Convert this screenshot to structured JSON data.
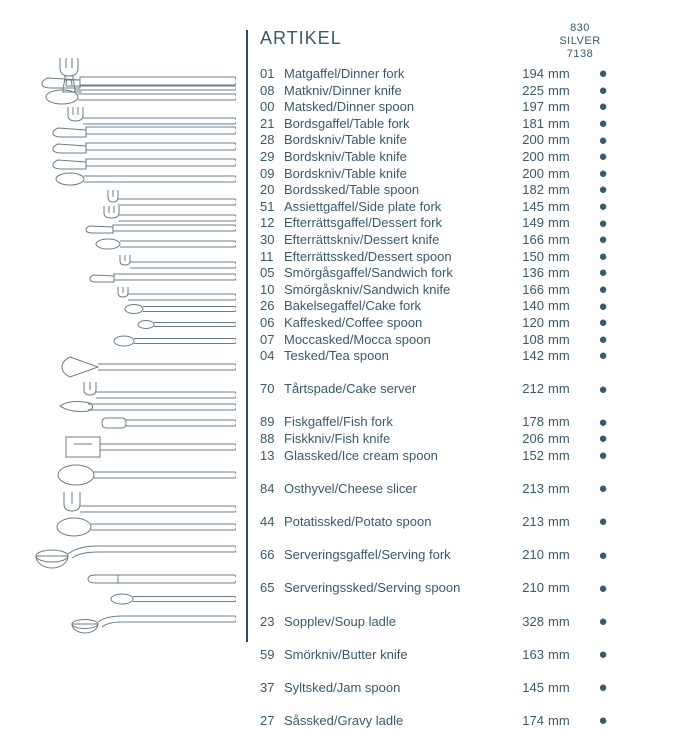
{
  "header": {
    "title": "ARTIKEL",
    "right_line1": "830",
    "right_line2": "SILVER",
    "right_line3": "7138"
  },
  "unit": "mm",
  "dot": "●",
  "colors": {
    "text": "#3a5a6a",
    "stroke": "#6b7d85",
    "background": "#ffffff"
  },
  "items": [
    {
      "code": "01",
      "name": "Matgaffel/Dinner fork",
      "dim": "194",
      "dot": true
    },
    {
      "code": "08",
      "name": "Matkniv/Dinner knife",
      "dim": "225",
      "dot": true
    },
    {
      "code": "00",
      "name": "Matsked/Dinner spoon",
      "dim": "197",
      "dot": true
    },
    {
      "code": "21",
      "name": "Bordsgaffel/Table fork",
      "dim": "181",
      "dot": true
    },
    {
      "code": "28",
      "name": "Bordskniv/Table knife",
      "dim": "200",
      "dot": true
    },
    {
      "code": "29",
      "name": "Bordskniv/Table knife",
      "dim": "200",
      "dot": true
    },
    {
      "code": "09",
      "name": "Bordskniv/Table knife",
      "dim": "200",
      "dot": true
    },
    {
      "code": "20",
      "name": "Bordssked/Table spoon",
      "dim": "182",
      "dot": true
    },
    {
      "code": "51",
      "name": "Assiettgaffel/Side plate fork",
      "dim": "145",
      "dot": true
    },
    {
      "code": "12",
      "name": "Efterrättsgaffel/Dessert fork",
      "dim": "149",
      "dot": true
    },
    {
      "code": "30",
      "name": "Efterrättskniv/Dessert knife",
      "dim": "166",
      "dot": true
    },
    {
      "code": "11",
      "name": "Efterrättssked/Dessert spoon",
      "dim": "150",
      "dot": true
    },
    {
      "code": "05",
      "name": "Smörgåsgaffel/Sandwich fork",
      "dim": "136",
      "dot": true
    },
    {
      "code": "10",
      "name": "Smörgåskniv/Sandwich knife",
      "dim": "166",
      "dot": true
    },
    {
      "code": "26",
      "name": "Bakelsegaffel/Cake fork",
      "dim": "140",
      "dot": true
    },
    {
      "code": "06",
      "name": "Kaffesked/Coffee spoon",
      "dim": "120",
      "dot": true
    },
    {
      "code": "07",
      "name": "Moccasked/Mocca spoon",
      "dim": "108",
      "dot": true
    },
    {
      "code": "04",
      "name": "Tesked/Tea spoon",
      "dim": "142",
      "dot": true
    },
    {
      "gap": true
    },
    {
      "code": "70",
      "name": "Tårtspade/Cake server",
      "dim": "212",
      "dot": true
    },
    {
      "gap": true
    },
    {
      "code": "89",
      "name": "Fiskgaffel/Fish fork",
      "dim": "178",
      "dot": true
    },
    {
      "code": "88",
      "name": "Fiskkniv/Fish knife",
      "dim": "206",
      "dot": true
    },
    {
      "code": "13",
      "name": "Glassked/Ice cream spoon",
      "dim": "152",
      "dot": true
    },
    {
      "gap": true
    },
    {
      "code": "84",
      "name": "Osthyvel/Cheese slicer",
      "dim": "213",
      "dot": true
    },
    {
      "gap": true
    },
    {
      "code": "44",
      "name": "Potatissked/Potato spoon",
      "dim": "213",
      "dot": true
    },
    {
      "gap": true
    },
    {
      "code": "66",
      "name": "Serveringsgaffel/Serving fork",
      "dim": "210",
      "dot": true
    },
    {
      "gap": true
    },
    {
      "code": "65",
      "name": "Serveringssked/Serving spoon",
      "dim": "210",
      "dot": true
    },
    {
      "gap": true
    },
    {
      "code": "23",
      "name": "Sopplev/Soup ladle",
      "dim": "328",
      "dot": true
    },
    {
      "gap": true
    },
    {
      "code": "59",
      "name": "Smörkniv/Butter knife",
      "dim": "163",
      "dot": true
    },
    {
      "gap": true
    },
    {
      "code": "37",
      "name": "Syltsked/Jam spoon",
      "dim": "145",
      "dot": true
    },
    {
      "gap": true
    },
    {
      "code": "27",
      "name": "Såssked/Gravy ladle",
      "dim": "174",
      "dot": true
    }
  ]
}
